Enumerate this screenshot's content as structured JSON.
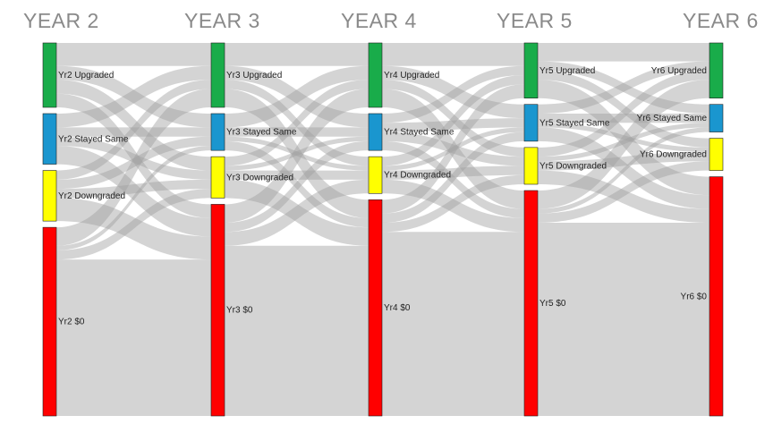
{
  "years": [
    "YEAR 2",
    "YEAR 3",
    "YEAR 4",
    "YEAR 5",
    "YEAR 6"
  ],
  "category_colors": {
    "upgraded": "#19ac4a",
    "stayed_same": "#1a96cf",
    "downgraded": "#ffff00",
    "zero": "#ff0000"
  },
  "link_color": "#a0a0a0",
  "nodes": [
    [
      {
        "id": "y2-up",
        "label": "Yr2 Upgraded",
        "cat": "upgraded",
        "value": 14
      },
      {
        "id": "y2-ss",
        "label": "Yr2 Stayed Same",
        "cat": "stayed_same",
        "value": 11
      },
      {
        "id": "y2-dn",
        "label": "Yr2 Downgraded",
        "cat": "downgraded",
        "value": 11
      },
      {
        "id": "y2-z",
        "label": "Yr2 $0",
        "cat": "zero",
        "value": 41
      }
    ],
    [
      {
        "id": "y3-up",
        "label": "Yr3 Upgraded",
        "cat": "upgraded",
        "value": 14
      },
      {
        "id": "y3-ss",
        "label": "Yr3 Stayed Same",
        "cat": "stayed_same",
        "value": 8
      },
      {
        "id": "y3-dn",
        "label": "Yr3 Downgraded",
        "cat": "downgraded",
        "value": 9
      },
      {
        "id": "y3-z",
        "label": "Yr3 $0",
        "cat": "zero",
        "value": 46
      }
    ],
    [
      {
        "id": "y4-up",
        "label": "Yr4 Upgraded",
        "cat": "upgraded",
        "value": 14
      },
      {
        "id": "y4-ss",
        "label": "Yr4 Stayed Same",
        "cat": "stayed_same",
        "value": 8
      },
      {
        "id": "y4-dn",
        "label": "Yr4 Downgraded",
        "cat": "downgraded",
        "value": 8
      },
      {
        "id": "y4-z",
        "label": "Yr4 $0",
        "cat": "zero",
        "value": 47
      }
    ],
    [
      {
        "id": "y5-up",
        "label": "Yr5 Upgraded",
        "cat": "upgraded",
        "value": 12
      },
      {
        "id": "y5-ss",
        "label": "Yr5 Stayed Same",
        "cat": "stayed_same",
        "value": 8
      },
      {
        "id": "y5-dn",
        "label": "Yr5 Downgraded",
        "cat": "downgraded",
        "value": 8
      },
      {
        "id": "y5-z",
        "label": "Yr5 $0",
        "cat": "zero",
        "value": 49
      }
    ],
    [
      {
        "id": "y6-up",
        "label": "Yr6 Upgraded",
        "cat": "upgraded",
        "value": 12
      },
      {
        "id": "y6-ss",
        "label": "Yr6 Stayed Same",
        "cat": "stayed_same",
        "value": 6
      },
      {
        "id": "y6-dn",
        "label": "Yr6 Downgraded",
        "cat": "downgraded",
        "value": 7
      },
      {
        "id": "y6-z",
        "label": "Yr6 $0",
        "cat": "zero",
        "value": 52
      }
    ]
  ],
  "links": [
    [
      [
        5,
        3,
        3,
        3
      ],
      [
        3,
        2,
        2,
        4
      ],
      [
        2,
        2,
        2,
        5
      ],
      [
        4,
        1,
        2,
        34
      ]
    ],
    [
      [
        5,
        3,
        2,
        4
      ],
      [
        3,
        2,
        1,
        2
      ],
      [
        2,
        1,
        2,
        4
      ],
      [
        4,
        2,
        3,
        37
      ]
    ],
    [
      [
        5,
        3,
        2,
        4
      ],
      [
        2,
        2,
        2,
        2
      ],
      [
        2,
        1,
        2,
        3
      ],
      [
        3,
        2,
        2,
        40
      ]
    ],
    [
      [
        4,
        2,
        2,
        4
      ],
      [
        2,
        2,
        1,
        3
      ],
      [
        2,
        1,
        2,
        3
      ],
      [
        4,
        1,
        2,
        42
      ]
    ]
  ]
}
